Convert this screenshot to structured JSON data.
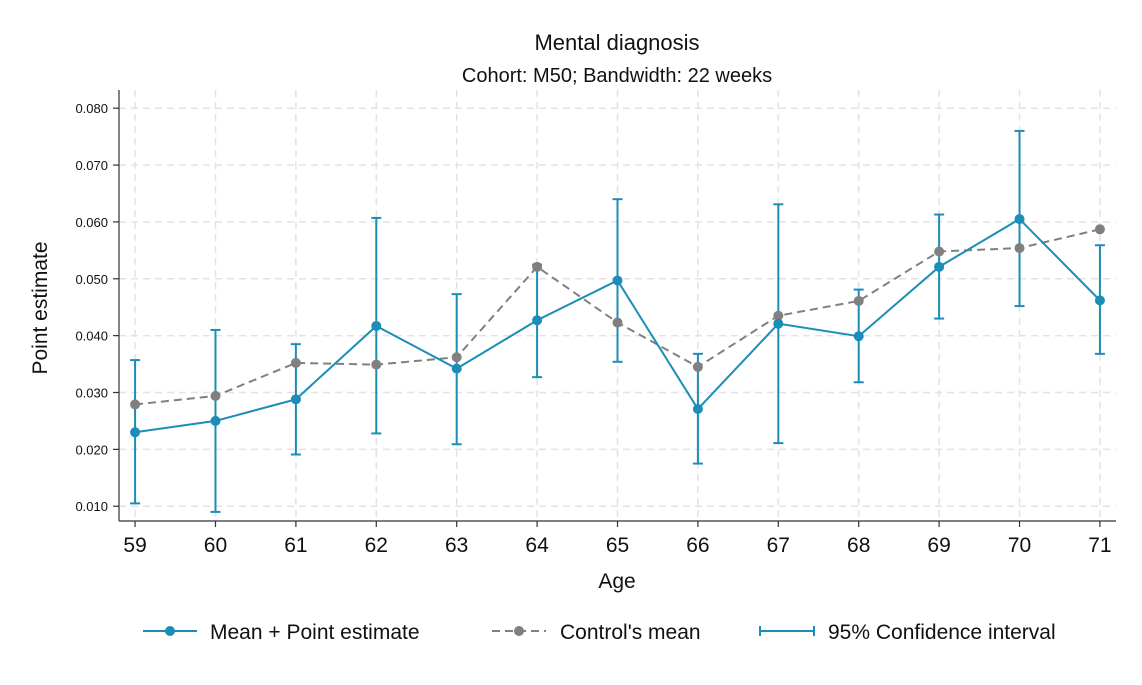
{
  "chart_data": {
    "type": "line",
    "title": "Mental diagnosis",
    "subtitle": "Cohort: M50; Bandwidth: 22 weeks",
    "xlabel": "Age",
    "ylabel": "Point estimate",
    "x": [
      59,
      60,
      61,
      62,
      63,
      64,
      65,
      66,
      67,
      68,
      69,
      70,
      71
    ],
    "x_tick_labels": [
      "59",
      "60",
      "61",
      "62",
      "63",
      "64",
      "65",
      "66",
      "67",
      "68",
      "69",
      "70",
      "71"
    ],
    "y_ticks": [
      0.01,
      0.02,
      0.03,
      0.04,
      0.05,
      0.06,
      0.07,
      0.08
    ],
    "y_tick_labels": [
      "0.010",
      "0.020",
      "0.030",
      "0.040",
      "0.050",
      "0.060",
      "0.070",
      "0.080"
    ],
    "ylim": [
      0.0074,
      0.0832
    ],
    "xlim": [
      58.8,
      71.2
    ],
    "grid": true,
    "legend_position": "bottom",
    "series": [
      {
        "name": "Mean + Point estimate",
        "style": "solid",
        "color": "#1B8DB7",
        "values": [
          0.023,
          0.025,
          0.0288,
          0.0417,
          0.0342,
          0.0427,
          0.0497,
          0.0271,
          0.0421,
          0.0399,
          0.0521,
          0.0605,
          0.0462
        ]
      },
      {
        "name": "Control's mean",
        "style": "dashed",
        "color": "#808080",
        "values": [
          0.0279,
          0.0294,
          0.0352,
          0.0349,
          0.0362,
          0.0521,
          0.0423,
          0.0345,
          0.0435,
          0.0461,
          0.0548,
          0.0554,
          0.0587
        ]
      }
    ],
    "confidence_interval": {
      "name": "95% Confidence interval",
      "color": "#1B8DB7",
      "lower": [
        0.0105,
        0.009,
        0.0191,
        0.0228,
        0.0209,
        0.0327,
        0.0354,
        0.0175,
        0.0211,
        0.0318,
        0.043,
        0.0452,
        0.0368
      ],
      "upper": [
        0.0357,
        0.041,
        0.0385,
        0.0607,
        0.0473,
        0.0525,
        0.064,
        0.0368,
        0.0631,
        0.0481,
        0.0613,
        0.076,
        0.0559
      ]
    }
  }
}
